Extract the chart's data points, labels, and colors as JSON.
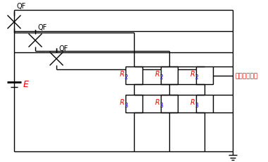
{
  "bg_color": "#ffffff",
  "line_color": "#000000",
  "label_QF": "QF",
  "label_E": "E",
  "label_signal": "抄取三相信号",
  "figsize": [
    3.8,
    2.3
  ],
  "dpi": 100
}
